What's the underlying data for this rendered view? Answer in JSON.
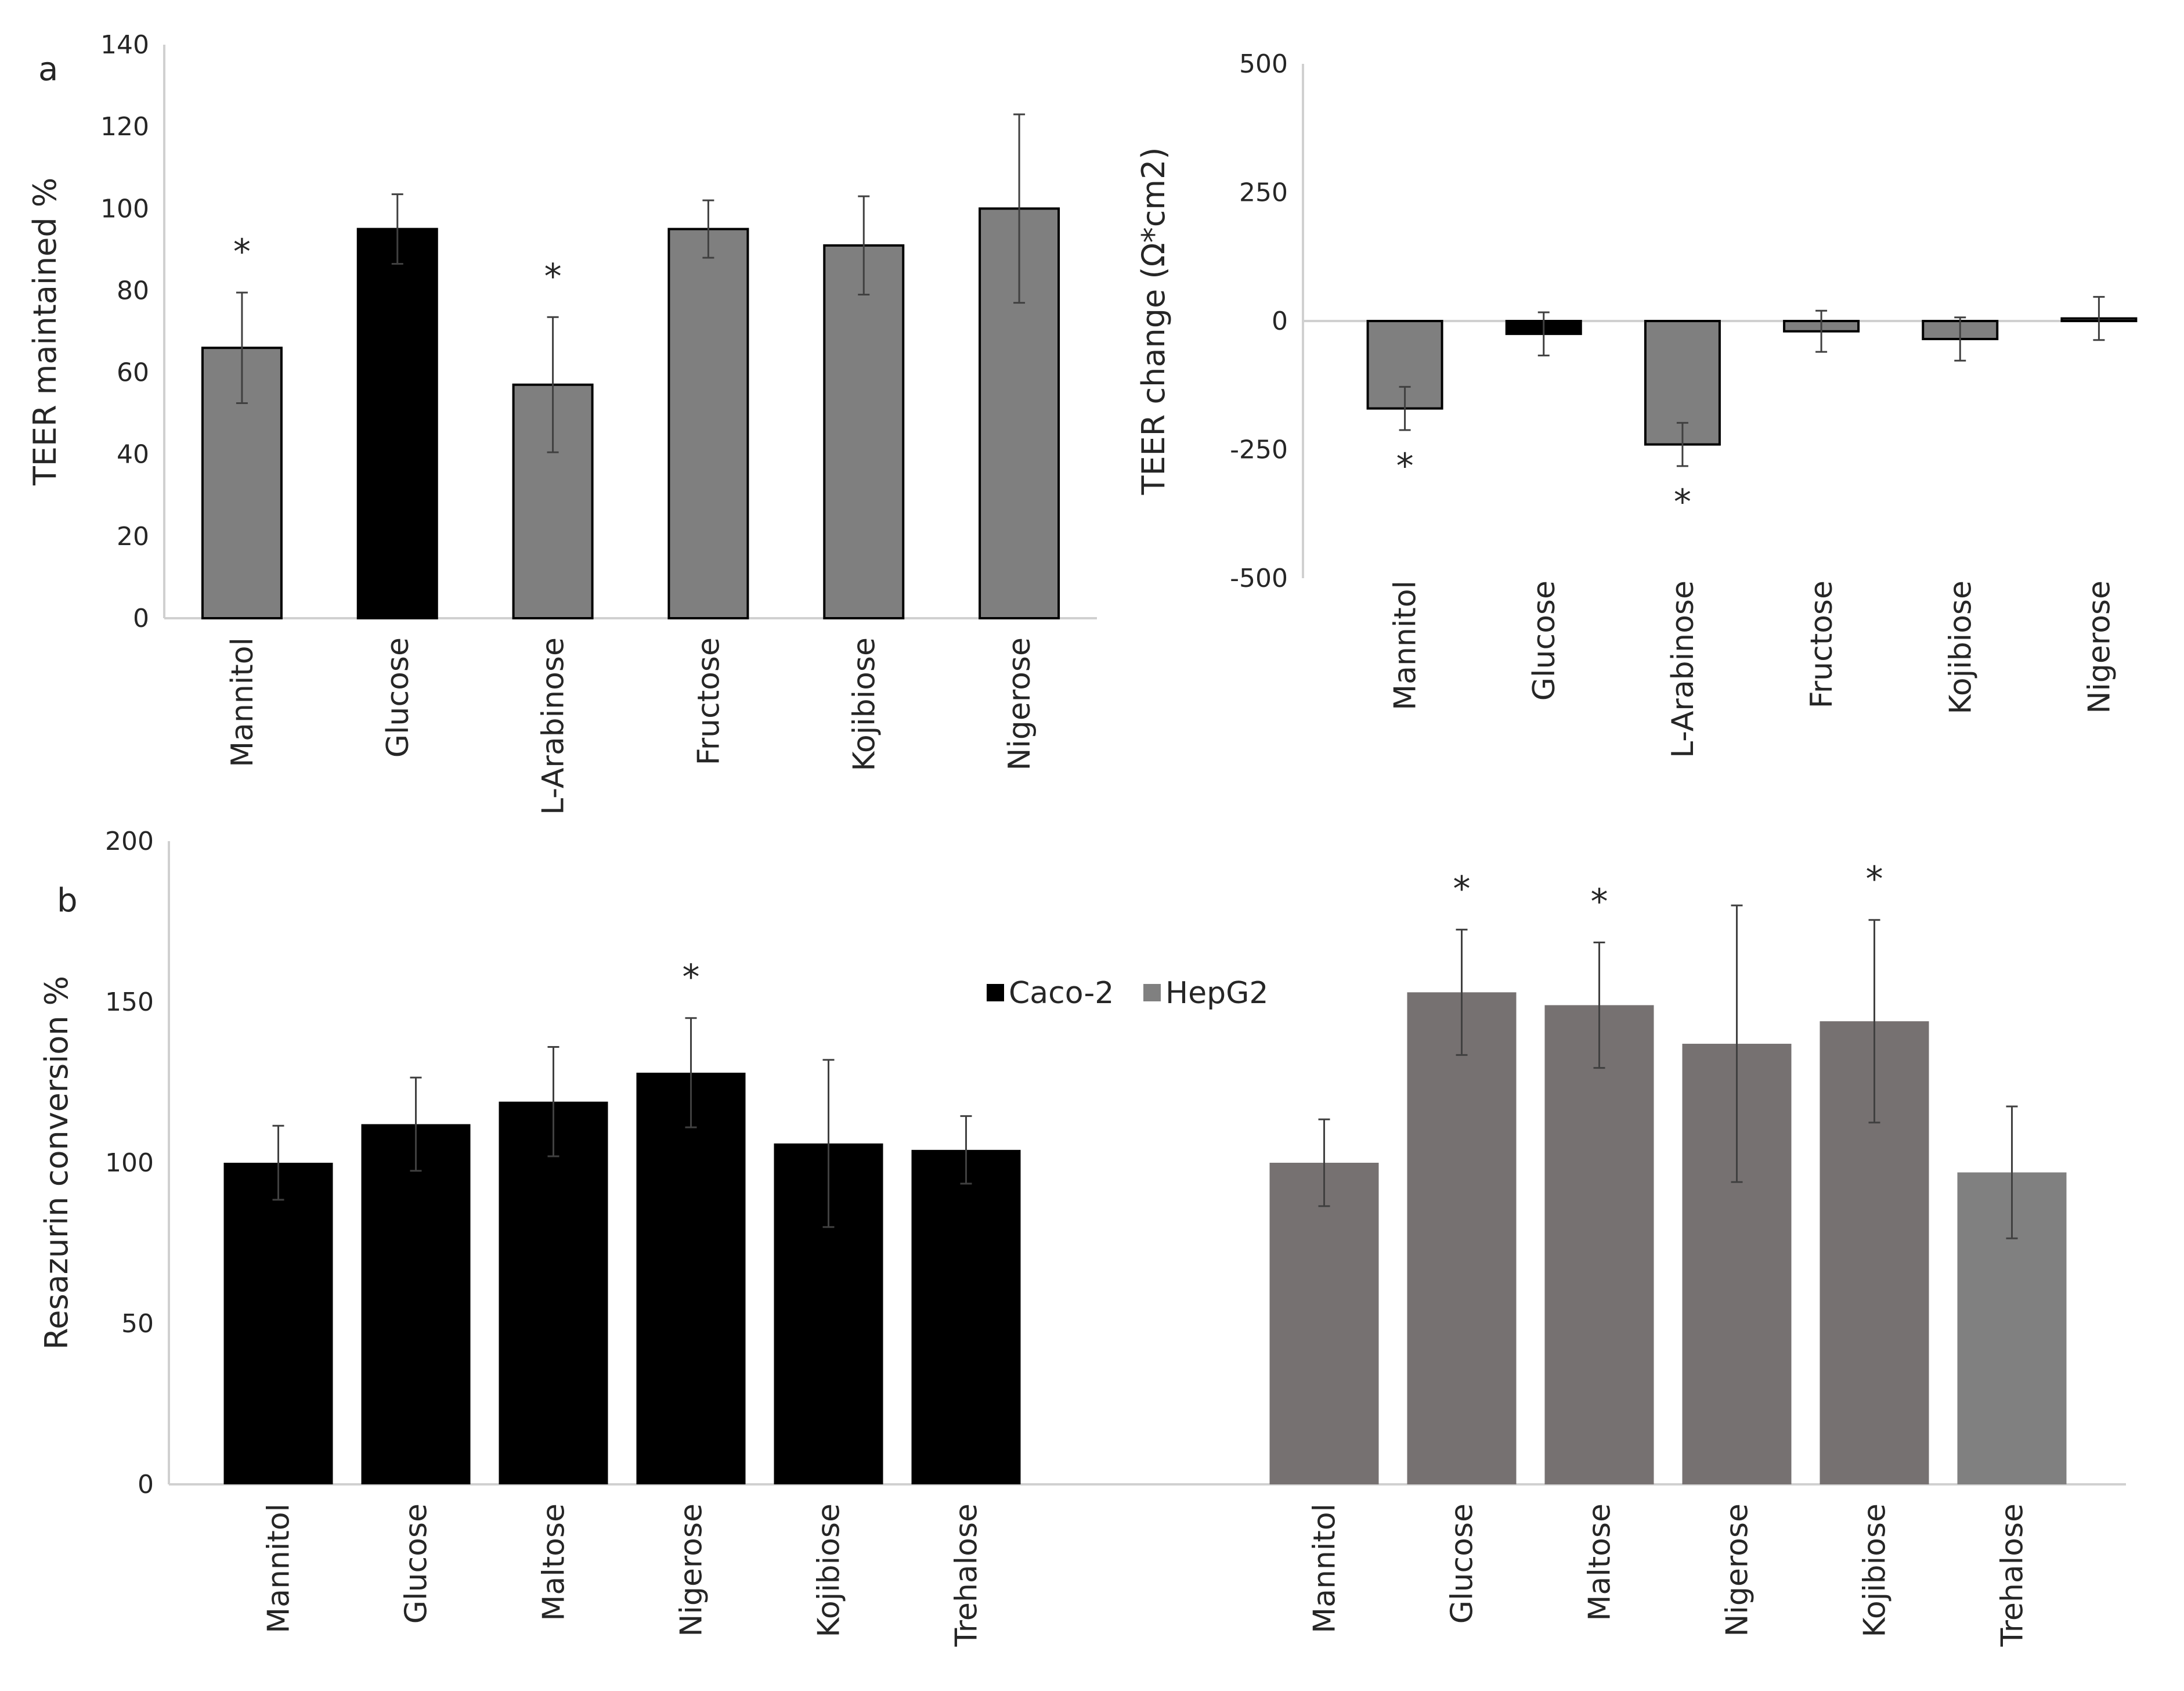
{
  "chart_data": [
    {
      "id": "a_left",
      "type": "bar",
      "panel_label": "a",
      "ylabel": "TEER maintained %",
      "ylim": [
        0,
        140
      ],
      "yticks": [
        0,
        20,
        40,
        60,
        80,
        100,
        120,
        140
      ],
      "categories": [
        "Mannitol",
        "Glucose",
        "L-Arabinose",
        "Fructose",
        "Kojibiose",
        "Nigerose"
      ],
      "values": [
        66,
        95,
        57,
        95,
        91,
        100
      ],
      "errors": [
        13.5,
        8.5,
        16.5,
        7,
        12,
        23
      ],
      "colors": [
        "#7f7f7f",
        "#000000",
        "#7f7f7f",
        "#7f7f7f",
        "#7f7f7f",
        "#7f7f7f"
      ],
      "significant": [
        true,
        false,
        true,
        false,
        false,
        false
      ],
      "significance_mark": "*"
    },
    {
      "id": "a_right",
      "type": "bar",
      "ylabel": "TEER change (Ω*cm2)",
      "ylim": [
        -500,
        500
      ],
      "yticks": [
        -500,
        -250,
        0,
        250,
        500
      ],
      "categories": [
        "Mannitol",
        "Glucose",
        "L-Arabinose",
        "Fructose",
        "Kojibiose",
        "Nigerose"
      ],
      "values": [
        -170,
        -25,
        -240,
        -20,
        -35,
        5
      ],
      "errors": [
        42,
        42,
        42,
        40,
        42,
        42
      ],
      "colors": [
        "#7f7f7f",
        "#000000",
        "#7f7f7f",
        "#7f7f7f",
        "#7f7f7f",
        "#7f7f7f"
      ],
      "significant": [
        true,
        false,
        true,
        false,
        false,
        false
      ],
      "significance_mark": "*"
    },
    {
      "id": "b",
      "type": "bar",
      "panel_label": "b",
      "ylabel": "Resazurin conversion %",
      "ylim": [
        0,
        200
      ],
      "yticks": [
        0,
        50,
        100,
        150,
        200
      ],
      "legend_position": "top-center",
      "significance_mark": "*",
      "series": [
        {
          "name": "Caco-2",
          "color": "#000000",
          "categories": [
            "Mannitol",
            "Glucose",
            "Maltose",
            "Nigerose",
            "Kojibiose",
            "Trehalose"
          ],
          "values": [
            100,
            112,
            119,
            128,
            106,
            104
          ],
          "errors": [
            11.5,
            14.5,
            17,
            17,
            26,
            10.5
          ],
          "significant": [
            false,
            false,
            false,
            true,
            false,
            false
          ]
        },
        {
          "name": "HepG2",
          "color": "#767171",
          "legend_color": "#808080",
          "categories": [
            "Mannitol",
            "Glucose",
            "Maltose",
            "Nigerose",
            "Kojibiose",
            "Trehalose"
          ],
          "values": [
            100,
            153,
            149,
            137,
            144,
            97
          ],
          "colors": [
            "#767171",
            "#767171",
            "#767171",
            "#767171",
            "#767171",
            "#808080"
          ],
          "errors": [
            13.5,
            19.5,
            19.5,
            43,
            31.5,
            20.5
          ],
          "significant": [
            false,
            true,
            true,
            false,
            true,
            false
          ]
        }
      ]
    }
  ]
}
